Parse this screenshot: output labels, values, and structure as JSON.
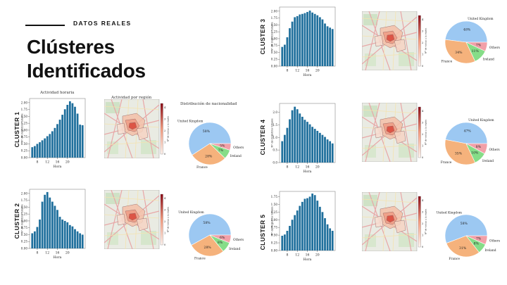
{
  "header": {
    "kicker": "DATOS REALES",
    "title_line1": "Clústeres",
    "title_line2": "Identificados"
  },
  "captions": {
    "hist": "Actividad horaria",
    "map": "Actividad por región",
    "pie": "Distribución de nacionalidad"
  },
  "axis_text": {
    "hist_xlabel": "Hora",
    "hist_ylabel": "Nº de registros totales",
    "map_colorbar_label": "Nº de visitas a la región",
    "map_colorbar_ticks": [
      "0",
      "1",
      "2",
      "3",
      "4"
    ]
  },
  "colors": {
    "bar": "#1f6f9c",
    "united_kingdom": "#9cc8f2",
    "france": "#f5b27c",
    "ireland": "#86dd88",
    "others": "#f2a0a8"
  },
  "chart_data": [
    {
      "cluster": "CLUSTER 1",
      "type": "bar",
      "x_ticks": [
        "8",
        "12",
        "16",
        "20"
      ],
      "y_ticks": [
        "0.00",
        "0.25",
        "0.50",
        "0.75",
        "1.00",
        "1.25",
        "1.50",
        "1.75",
        "2.00"
      ],
      "ylim": [
        0,
        2.15
      ],
      "values": [
        0.38,
        0.42,
        0.5,
        0.56,
        0.63,
        0.7,
        0.78,
        0.86,
        0.96,
        1.08,
        1.22,
        1.38,
        1.56,
        1.76,
        1.92,
        2.05,
        1.98,
        1.85,
        1.6,
        1.2,
        1.18
      ],
      "pie": {
        "type": "pie",
        "labels": [
          "United Kingdom",
          "France",
          "Ireland",
          "Others"
        ],
        "values": [
          58,
          28,
          7,
          5
        ],
        "pct_labels": [
          "58%",
          "28%",
          "7%",
          "5%"
        ]
      }
    },
    {
      "cluster": "CLUSTER 2",
      "type": "bar",
      "x_ticks": [
        "8",
        "12",
        "16",
        "20"
      ],
      "y_ticks": [
        "0.00",
        "0.25",
        "0.50",
        "0.75",
        "1.00",
        "1.25",
        "1.50",
        "1.75",
        "2.00"
      ],
      "ylim": [
        0,
        2.15
      ],
      "values": [
        0.55,
        0.62,
        0.78,
        1.05,
        1.7,
        1.95,
        2.05,
        1.85,
        1.7,
        1.55,
        1.4,
        1.15,
        1.05,
        1.0,
        0.95,
        0.85,
        0.8,
        0.7,
        0.62,
        0.55,
        0.5
      ],
      "pie": {
        "type": "pie",
        "labels": [
          "United Kingdom",
          "France",
          "Ireland",
          "Others"
        ],
        "values": [
          58,
          28,
          8,
          6
        ],
        "pct_labels": [
          "58%",
          "28%",
          "8%",
          "6%"
        ]
      }
    },
    {
      "cluster": "CLUSTER 3",
      "type": "bar",
      "x_ticks": [
        "8",
        "12",
        "16",
        "20"
      ],
      "y_ticks": [
        "0.00",
        "0.25",
        "0.50",
        "0.75",
        "1.00",
        "1.25",
        "1.50",
        "1.75",
        "2.00"
      ],
      "ylim": [
        0,
        2.15
      ],
      "values": [
        0.7,
        0.78,
        1.05,
        1.38,
        1.62,
        1.78,
        1.82,
        1.88,
        1.9,
        1.93,
        1.97,
        2.02,
        1.95,
        1.9,
        1.85,
        1.78,
        1.7,
        1.55,
        1.45,
        1.4,
        1.35
      ],
      "pie": {
        "type": "pie",
        "labels": [
          "United Kingdom",
          "France",
          "Ireland",
          "Others"
        ],
        "values": [
          48,
          34,
          11,
          7
        ],
        "pct_labels": [
          "48%",
          "34%",
          "11%",
          "7%"
        ]
      }
    },
    {
      "cluster": "CLUSTER 4",
      "type": "bar",
      "x_ticks": [
        "8",
        "12",
        "16",
        "20"
      ],
      "y_ticks": [
        "0.0",
        "0.5",
        "1.0",
        "1.5",
        "2.0"
      ],
      "ylim": [
        0,
        2.35
      ],
      "values": [
        0.85,
        1.1,
        1.38,
        1.72,
        2.08,
        2.22,
        2.12,
        1.95,
        1.82,
        1.7,
        1.62,
        1.52,
        1.42,
        1.34,
        1.26,
        1.18,
        1.1,
        1.02,
        0.92,
        0.85,
        0.76
      ],
      "pie": {
        "type": "pie",
        "labels": [
          "United Kingdom",
          "France",
          "Ireland",
          "Others"
        ],
        "values": [
          47,
          35,
          10,
          8
        ],
        "pct_labels": [
          "47%",
          "35%",
          "10%",
          "8%"
        ]
      }
    },
    {
      "cluster": "CLUSTER 5",
      "type": "bar",
      "x_ticks": [
        "8",
        "12",
        "16",
        "20"
      ],
      "y_ticks": [
        "0.00",
        "0.25",
        "0.50",
        "0.75",
        "1.00",
        "1.25",
        "1.50",
        "1.75"
      ],
      "ylim": [
        0,
        1.92
      ],
      "values": [
        0.48,
        0.52,
        0.64,
        0.8,
        1.0,
        1.15,
        1.3,
        1.45,
        1.58,
        1.68,
        1.7,
        1.75,
        1.85,
        1.8,
        1.62,
        1.42,
        1.25,
        1.05,
        0.85,
        0.72,
        0.64
      ],
      "pie": {
        "type": "pie",
        "labels": [
          "United Kingdom",
          "France",
          "Ireland",
          "Others"
        ],
        "values": [
          58,
          31,
          8,
          7
        ],
        "pct_labels": [
          "58%",
          "31%",
          "8%",
          "7%"
        ]
      }
    }
  ]
}
